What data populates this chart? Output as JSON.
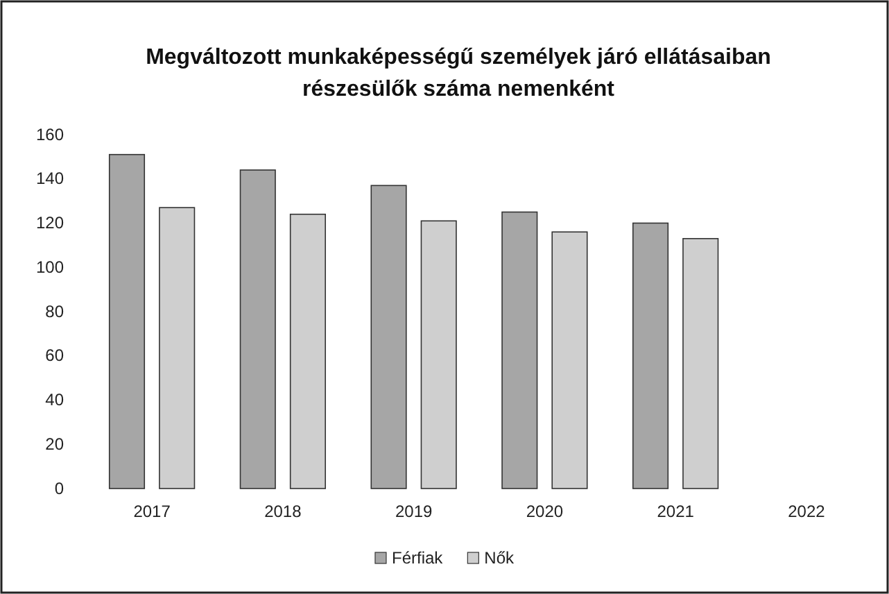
{
  "chart_data": {
    "type": "bar",
    "title": "Megváltozott munkaképességű személyek járó ellátásaiban részesülők száma nemenként",
    "categories": [
      "2017",
      "2018",
      "2019",
      "2020",
      "2021",
      "2022"
    ],
    "series": [
      {
        "name": "Férfiak",
        "color": "#a6a6a6",
        "values": [
          151,
          144,
          137,
          125,
          120,
          null
        ]
      },
      {
        "name": "Nők",
        "color": "#cfcfcf",
        "values": [
          127,
          124,
          121,
          116,
          113,
          null
        ]
      }
    ],
    "ylim": [
      0,
      160
    ],
    "yticks": [
      0,
      20,
      40,
      60,
      80,
      100,
      120,
      140,
      160
    ],
    "grid": false,
    "legend": "bottom"
  }
}
